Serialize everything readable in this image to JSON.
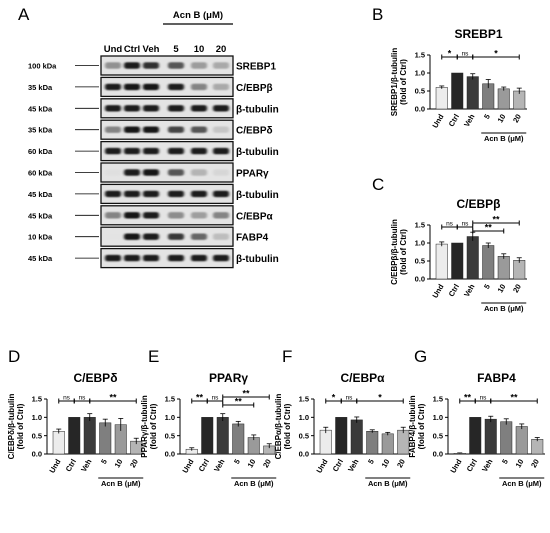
{
  "panel_letters": [
    "A",
    "B",
    "C",
    "D",
    "E",
    "F",
    "G"
  ],
  "western_blot": {
    "treatment_header": "Acn B (μM)",
    "lanes": [
      "Und",
      "Ctrl",
      "Veh",
      "5",
      "10",
      "20"
    ],
    "rows": [
      {
        "kda": "100 kDa",
        "label": "SREBP1",
        "intensity": [
          0.6,
          0.95,
          0.9,
          0.8,
          0.56,
          0.5
        ]
      },
      {
        "kda": "35 kDa",
        "label": "C/EBPβ",
        "intensity": [
          0.95,
          1.0,
          1.0,
          0.95,
          0.65,
          0.5
        ]
      },
      {
        "kda": "45 kDa",
        "label": "β-tubulin",
        "intensity": [
          0.95,
          0.95,
          0.95,
          0.95,
          0.95,
          0.95
        ]
      },
      {
        "kda": "35 kDa",
        "label": "C/EBPδ",
        "intensity": [
          0.65,
          1.0,
          1.0,
          0.85,
          0.8,
          0.35
        ]
      },
      {
        "kda": "60 kDa",
        "label": "β-tubulin",
        "intensity": [
          0.95,
          0.95,
          0.95,
          0.95,
          0.95,
          0.95
        ]
      },
      {
        "kda": "60 kDa",
        "label": "PPARγ",
        "intensity": [
          0.12,
          0.95,
          1.0,
          0.8,
          0.45,
          0.22
        ]
      },
      {
        "kda": "45 kDa",
        "label": "β-tubulin",
        "intensity": [
          0.95,
          0.95,
          0.95,
          0.95,
          0.95,
          0.95
        ]
      },
      {
        "kda": "45 kDa",
        "label": "C/EBPα",
        "intensity": [
          0.65,
          1.0,
          0.95,
          0.62,
          0.55,
          0.65
        ]
      },
      {
        "kda": "10 kDa",
        "label": "FABP4",
        "intensity": [
          0.02,
          1.0,
          0.95,
          0.88,
          0.75,
          0.4
        ]
      },
      {
        "kda": "45 kDa",
        "label": "β-tubulin",
        "intensity": [
          0.95,
          0.95,
          0.95,
          0.95,
          0.95,
          0.95
        ]
      }
    ]
  },
  "chart_data": [
    {
      "type": "bar",
      "panel": "B",
      "title": "SREBP1",
      "ylabel": "SREBP1/β-tubulin",
      "ylabel_unit": "(fold of Ctrl)",
      "categories": [
        "Und",
        "Ctrl",
        "Veh",
        "5",
        "10",
        "20"
      ],
      "values": [
        0.6,
        1.0,
        0.9,
        0.7,
        0.56,
        0.5
      ],
      "errors": [
        0.04,
        0.0,
        0.08,
        0.12,
        0.05,
        0.08
      ],
      "bar_colors": [
        "#ececec",
        "#262626",
        "#3a3a3a",
        "#7f7f7f",
        "#9a9a9a",
        "#b5b5b5"
      ],
      "ylim": [
        0,
        1.5
      ],
      "yticks": [
        "0.0",
        "0.5",
        "1.0",
        "1.5"
      ],
      "group_label": "Acn B (μM)",
      "significance": [
        {
          "from": 0,
          "to": 1,
          "label": "*"
        },
        {
          "from": 1,
          "to": 2,
          "label": "ns"
        },
        {
          "from": 2,
          "to": 5,
          "label": "*"
        }
      ]
    },
    {
      "type": "bar",
      "panel": "C",
      "title": "C/EBPβ",
      "ylabel": "C/EBPβ/β-tubulin",
      "ylabel_unit": "(fold of Ctrl)",
      "categories": [
        "Und",
        "Ctrl",
        "Veh",
        "5",
        "10",
        "20"
      ],
      "values": [
        0.97,
        1.0,
        1.18,
        0.93,
        0.63,
        0.52
      ],
      "errors": [
        0.06,
        0.0,
        0.12,
        0.07,
        0.07,
        0.07
      ],
      "bar_colors": [
        "#ececec",
        "#262626",
        "#3a3a3a",
        "#7f7f7f",
        "#9a9a9a",
        "#b5b5b5"
      ],
      "ylim": [
        0,
        1.5
      ],
      "yticks": [
        "0.0",
        "0.5",
        "1.0",
        "1.5"
      ],
      "group_label": "Acn B (μM)",
      "significance": [
        {
          "from": 0,
          "to": 1,
          "label": "ns"
        },
        {
          "from": 1,
          "to": 2,
          "label": "ns"
        },
        {
          "from": 2,
          "to": 5,
          "label": "**"
        },
        {
          "from": 2,
          "to": 4,
          "label": "**"
        }
      ]
    },
    {
      "type": "bar",
      "panel": "D",
      "title": "C/EBPδ",
      "ylabel": "C/EBPδ/β-tubulin",
      "ylabel_unit": "(fold of Ctrl)",
      "categories": [
        "Und",
        "Ctrl",
        "Veh",
        "5",
        "10",
        "20"
      ],
      "values": [
        0.62,
        1.0,
        1.0,
        0.85,
        0.8,
        0.35
      ],
      "errors": [
        0.06,
        0.0,
        0.1,
        0.1,
        0.17,
        0.08
      ],
      "bar_colors": [
        "#ececec",
        "#262626",
        "#3a3a3a",
        "#7f7f7f",
        "#9a9a9a",
        "#b5b5b5"
      ],
      "ylim": [
        0,
        1.5
      ],
      "yticks": [
        "0.0",
        "0.5",
        "1.0",
        "1.5"
      ],
      "group_label": "Acn B (μM)",
      "significance": [
        {
          "from": 0,
          "to": 1,
          "label": "ns"
        },
        {
          "from": 1,
          "to": 2,
          "label": "ns"
        },
        {
          "from": 2,
          "to": 5,
          "label": "**"
        }
      ]
    },
    {
      "type": "bar",
      "panel": "E",
      "title": "PPARγ",
      "ylabel": "PPARγ/β-tubulin",
      "ylabel_unit": "(fold of Ctrl)",
      "categories": [
        "Und",
        "Ctrl",
        "Veh",
        "5",
        "10",
        "20"
      ],
      "values": [
        0.13,
        1.0,
        1.0,
        0.82,
        0.45,
        0.22
      ],
      "errors": [
        0.04,
        0.0,
        0.1,
        0.07,
        0.07,
        0.06
      ],
      "bar_colors": [
        "#ececec",
        "#262626",
        "#3a3a3a",
        "#7f7f7f",
        "#9a9a9a",
        "#b5b5b5"
      ],
      "ylim": [
        0,
        1.5
      ],
      "yticks": [
        "0.0",
        "0.5",
        "1.0",
        "1.5"
      ],
      "group_label": "Acn B (μM)",
      "significance": [
        {
          "from": 0,
          "to": 1,
          "label": "**"
        },
        {
          "from": 1,
          "to": 2,
          "label": "ns"
        },
        {
          "from": 2,
          "to": 5,
          "label": "**"
        },
        {
          "from": 2,
          "to": 4,
          "label": "**"
        }
      ]
    },
    {
      "type": "bar",
      "panel": "F",
      "title": "C/EBPα",
      "ylabel": "C/EBPα/β-tubulin",
      "ylabel_unit": "(fold of Ctrl)",
      "categories": [
        "Und",
        "Ctrl",
        "Veh",
        "5",
        "10",
        "20"
      ],
      "values": [
        0.65,
        1.0,
        0.93,
        0.62,
        0.55,
        0.65
      ],
      "errors": [
        0.08,
        0.0,
        0.08,
        0.04,
        0.04,
        0.08
      ],
      "bar_colors": [
        "#ececec",
        "#262626",
        "#3a3a3a",
        "#7f7f7f",
        "#9a9a9a",
        "#b5b5b5"
      ],
      "ylim": [
        0,
        1.5
      ],
      "yticks": [
        "0.0",
        "0.5",
        "1.0",
        "1.5"
      ],
      "group_label": "Acn B (μM)",
      "significance": [
        {
          "from": 0,
          "to": 1,
          "label": "*"
        },
        {
          "from": 1,
          "to": 2,
          "label": "ns"
        },
        {
          "from": 2,
          "to": 5,
          "label": "*"
        }
      ]
    },
    {
      "type": "bar",
      "panel": "G",
      "title": "FABP4",
      "ylabel": "FABP4/β-tubulin",
      "ylabel_unit": "(fold of Ctrl)",
      "categories": [
        "Und",
        "Ctrl",
        "Veh",
        "5",
        "10",
        "20"
      ],
      "values": [
        0.02,
        1.0,
        0.95,
        0.88,
        0.75,
        0.4
      ],
      "errors": [
        0.01,
        0.0,
        0.08,
        0.08,
        0.07,
        0.05
      ],
      "bar_colors": [
        "#ececec",
        "#262626",
        "#3a3a3a",
        "#7f7f7f",
        "#9a9a9a",
        "#b5b5b5"
      ],
      "ylim": [
        0,
        1.5
      ],
      "yticks": [
        "0.0",
        "0.5",
        "1.0",
        "1.5"
      ],
      "group_label": "Acn B (μM)",
      "significance": [
        {
          "from": 0,
          "to": 1,
          "label": "**"
        },
        {
          "from": 1,
          "to": 2,
          "label": "ns"
        },
        {
          "from": 2,
          "to": 5,
          "label": "**"
        }
      ]
    }
  ]
}
